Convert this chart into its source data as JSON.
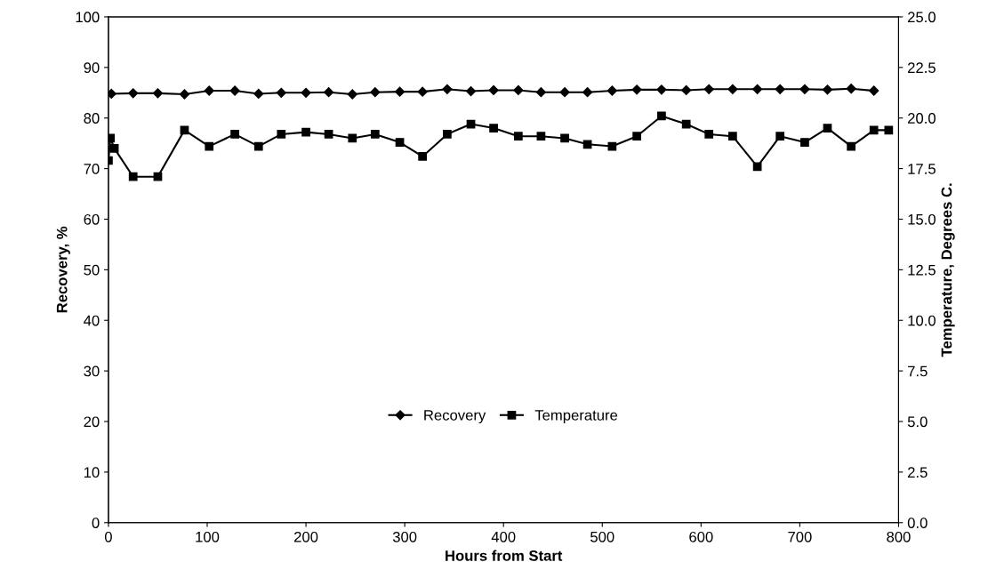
{
  "chart_data": {
    "type": "line",
    "xlabel": "Hours from Start",
    "ylabel": "Recovery, %",
    "y2label": "Temperature, Degrees C.",
    "xlim": [
      0,
      800
    ],
    "xticks": [
      0,
      100,
      200,
      300,
      400,
      500,
      600,
      700,
      800
    ],
    "ylim": [
      0,
      100
    ],
    "yticks": [
      0,
      10,
      20,
      30,
      40,
      50,
      60,
      70,
      80,
      90,
      100
    ],
    "y2lim": [
      0,
      25
    ],
    "y2ticks": [
      {
        "value": 0,
        "label": "0.0"
      },
      {
        "value": 2.5,
        "label": "2.5"
      },
      {
        "value": 5,
        "label": "5.0"
      },
      {
        "value": 7.5,
        "label": "7.5"
      },
      {
        "value": 10,
        "label": "10.0"
      },
      {
        "value": 12.5,
        "label": "12.5"
      },
      {
        "value": 15,
        "label": "15.0"
      },
      {
        "value": 17.5,
        "label": "17.5"
      },
      {
        "value": 20,
        "label": "20.0"
      },
      {
        "value": 22.5,
        "label": "22.5"
      },
      {
        "value": 25,
        "label": "25.0"
      }
    ],
    "legend": "bottom",
    "grid": false,
    "series": [
      {
        "name": "Recovery",
        "color": "#000000",
        "marker": "diamond",
        "x": [
          3,
          25,
          50,
          77,
          102,
          128,
          152,
          175,
          200,
          223,
          247,
          270,
          295,
          318,
          343,
          367,
          390,
          415,
          438,
          462,
          485,
          510,
          535,
          560,
          585,
          608,
          632,
          657,
          680,
          705,
          728,
          752,
          775
        ],
        "values": [
          84.8,
          84.9,
          84.9,
          84.7,
          85.4,
          85.4,
          84.8,
          85.0,
          85.0,
          85.1,
          84.7,
          85.1,
          85.2,
          85.2,
          85.7,
          85.3,
          85.5,
          85.5,
          85.1,
          85.1,
          85.1,
          85.4,
          85.6,
          85.6,
          85.5,
          85.7,
          85.7,
          85.7,
          85.7,
          85.7,
          85.6,
          85.8,
          85.4
        ]
      },
      {
        "name": "Temperature",
        "color": "#000000",
        "marker": "square",
        "axis": "y2",
        "x": [
          0,
          2,
          6,
          25,
          50,
          77,
          102,
          128,
          152,
          175,
          200,
          223,
          247,
          270,
          295,
          318,
          343,
          367,
          390,
          415,
          438,
          462,
          485,
          510,
          535,
          560,
          585,
          608,
          632,
          657,
          680,
          705,
          728,
          752,
          775,
          790
        ],
        "values": [
          17.9,
          19.0,
          18.5,
          17.1,
          17.1,
          19.4,
          18.6,
          19.2,
          18.6,
          19.2,
          19.3,
          19.2,
          19.0,
          19.2,
          18.8,
          18.1,
          19.2,
          19.7,
          19.5,
          19.1,
          19.1,
          19.0,
          18.7,
          18.6,
          19.1,
          20.1,
          19.7,
          19.2,
          19.1,
          17.6,
          19.1,
          18.8,
          19.5,
          18.6,
          19.4,
          19.4
        ]
      }
    ]
  }
}
